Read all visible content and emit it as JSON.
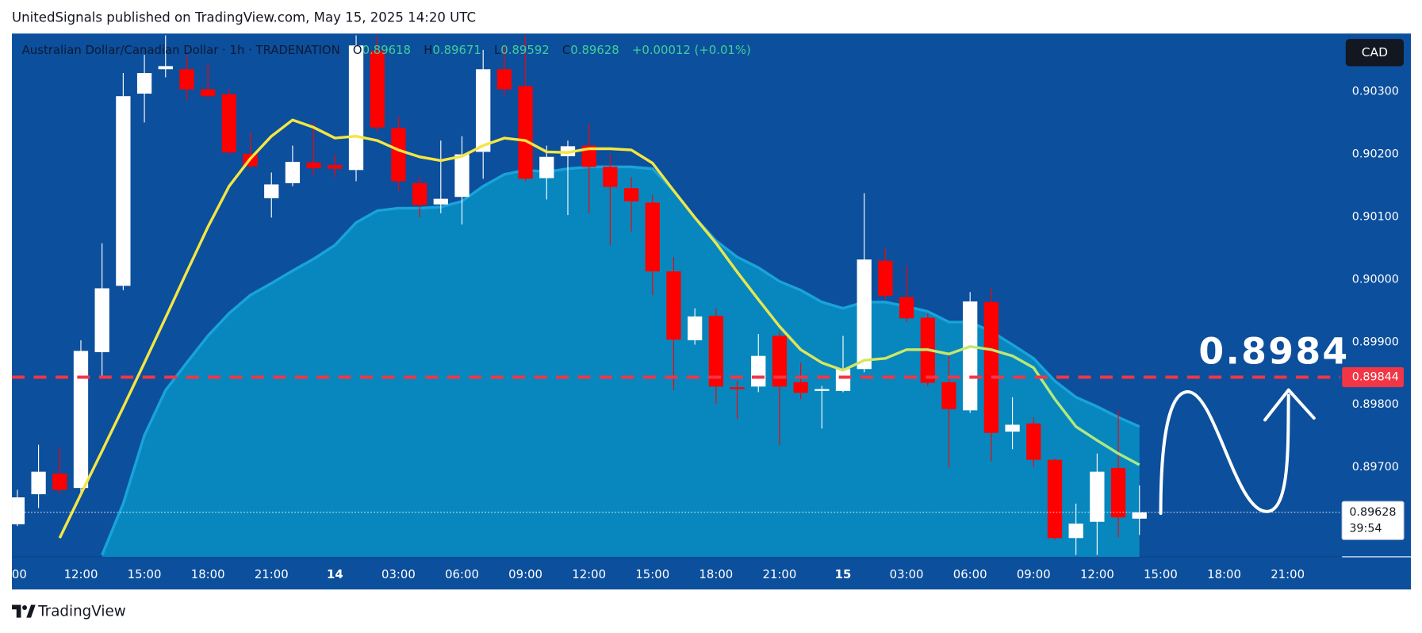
{
  "header": "UnitedSignals published on TradingView.com, May 15, 2025 14:20 UTC",
  "footer": "TradingView",
  "chart_data": {
    "type": "candlestick",
    "title": "Australian Dollar/Canadian Dollar · 1h · TRADENATION",
    "legend": [
      {
        "key": "O",
        "text": "0.89618"
      },
      {
        "key": "H",
        "text": "0.89671"
      },
      {
        "key": "L",
        "text": "0.89592"
      },
      {
        "key": "C",
        "text": "0.89628"
      },
      {
        "text": "+0.00012 (+0.01%)"
      }
    ],
    "currency": "CAD",
    "annotation": "0.8984",
    "categories": [
      ":00",
      null,
      null,
      "12:00",
      null,
      null,
      "15:00",
      null,
      null,
      "18:00",
      null,
      null,
      "21:00",
      null,
      null,
      "14",
      null,
      null,
      "03:00",
      null,
      null,
      "06:00",
      null,
      null,
      "09:00",
      null,
      null,
      "12:00",
      null,
      null,
      "15:00",
      null,
      null,
      "18:00",
      null,
      null,
      "21:00",
      null,
      null,
      "15",
      null,
      null,
      "03:00",
      null,
      null,
      "06:00",
      null,
      null,
      "09:00",
      null,
      null,
      "12:00",
      null,
      null,
      "15:00",
      null,
      null,
      "18:00",
      null,
      null,
      "21:00"
    ],
    "open": [
      0.89609,
      0.89657,
      0.8969,
      0.89667,
      0.89884,
      0.8999,
      0.90297,
      0.90336,
      0.90336,
      0.90304,
      0.90296,
      0.90201,
      0.9013,
      0.90154,
      0.90187,
      0.90183,
      0.90175,
      0.90365,
      0.90242,
      0.90154,
      0.9012,
      0.90132,
      0.90204,
      0.90336,
      0.90309,
      0.90162,
      0.90197,
      0.90214,
      0.9018,
      0.90146,
      0.90123,
      0.90013,
      0.89903,
      0.89942,
      0.89828,
      0.89829,
      0.8991,
      0.89836,
      0.89822,
      0.89822,
      0.89857,
      0.9003,
      0.89972,
      0.89939,
      0.89836,
      0.89791,
      0.89964,
      0.89757,
      0.8977,
      0.89712,
      0.89587,
      0.89613,
      0.89699,
      0.89618,
      null,
      null,
      null,
      null,
      null,
      null,
      null
    ],
    "high": [
      0.89664,
      0.89736,
      0.89732,
      0.89903,
      0.90058,
      0.9033,
      0.90359,
      0.9039,
      0.90359,
      0.90345,
      0.90304,
      0.90236,
      0.90171,
      0.90214,
      0.90251,
      0.902,
      0.9039,
      0.9039,
      0.90261,
      0.90164,
      0.90222,
      0.90229,
      0.90367,
      0.90374,
      0.9039,
      0.90214,
      0.90222,
      0.90249,
      0.902,
      0.90164,
      0.90135,
      0.90036,
      0.89954,
      0.89954,
      0.89838,
      0.89913,
      0.89917,
      0.89867,
      0.8983,
      0.8991,
      0.90138,
      0.90051,
      0.90022,
      0.89946,
      0.89881,
      0.8998,
      0.89986,
      0.89812,
      0.8978,
      0.89714,
      0.89642,
      0.89722,
      0.89791,
      0.89671,
      null,
      null,
      null,
      null,
      null,
      null,
      null
    ],
    "low": [
      0.89606,
      0.89635,
      0.89657,
      0.89657,
      0.89845,
      0.89983,
      0.90251,
      0.90323,
      0.90287,
      0.9029,
      0.902,
      0.90178,
      0.90099,
      0.90149,
      0.90167,
      0.90164,
      0.90157,
      0.90236,
      0.90142,
      0.90099,
      0.90106,
      0.90088,
      0.90161,
      0.90294,
      0.90157,
      0.90128,
      0.90103,
      0.90106,
      0.90055,
      0.90077,
      0.89975,
      0.89823,
      0.89896,
      0.89801,
      0.89777,
      0.8982,
      0.89736,
      0.89809,
      0.89762,
      0.8982,
      0.89852,
      0.89968,
      0.89932,
      0.8983,
      0.897,
      0.89787,
      0.8971,
      0.89729,
      0.897,
      0.89584,
      0.8956,
      0.8956,
      0.89588,
      0.89592,
      null,
      null,
      null,
      null,
      null,
      null,
      null
    ],
    "close": [
      0.89652,
      0.89693,
      0.89664,
      0.89886,
      0.89986,
      0.90293,
      0.9033,
      0.90341,
      0.90304,
      0.90293,
      0.90203,
      0.90181,
      0.90152,
      0.90188,
      0.90178,
      0.90177,
      0.90374,
      0.90243,
      0.90157,
      0.90119,
      0.90129,
      0.902,
      0.90336,
      0.90304,
      0.90161,
      0.90196,
      0.90213,
      0.9018,
      0.90148,
      0.90125,
      0.90013,
      0.89904,
      0.89941,
      0.89829,
      0.89825,
      0.89878,
      0.89829,
      0.89819,
      0.89825,
      0.89857,
      0.90032,
      0.89974,
      0.89938,
      0.89835,
      0.89793,
      0.89965,
      0.89755,
      0.89768,
      0.89712,
      0.89587,
      0.8961,
      0.89693,
      0.8962,
      0.89628,
      null,
      null,
      null,
      null,
      null,
      null,
      null
    ],
    "up_color": "#ffffff",
    "down_color": "#ff0000",
    "ma_line": {
      "colors": [
        "#f5e642",
        "#a6e88a"
      ],
      "values": [
        null,
        null,
        0.89587,
        0.89657,
        0.89726,
        0.89796,
        0.89867,
        0.89939,
        0.90012,
        0.90084,
        0.90149,
        0.90193,
        0.90229,
        0.90255,
        0.90243,
        0.90226,
        0.90229,
        0.90222,
        0.90207,
        0.90196,
        0.9019,
        0.90197,
        0.90214,
        0.90226,
        0.90222,
        0.90204,
        0.90203,
        0.90209,
        0.90209,
        0.90207,
        0.90186,
        0.90142,
        0.90099,
        0.90058,
        0.90012,
        0.89968,
        0.89925,
        0.89888,
        0.89867,
        0.89855,
        0.89871,
        0.89874,
        0.89888,
        0.89888,
        0.89881,
        0.89893,
        0.89888,
        0.89878,
        0.89859,
        0.89809,
        0.89765,
        0.89743,
        0.89722,
        0.89704,
        null,
        null,
        null,
        null,
        null,
        null,
        null
      ]
    },
    "band_area": {
      "color": "#0787bd",
      "edge_color": "#19a3da",
      "values": [
        null,
        null,
        null,
        null,
        0.8956,
        0.89642,
        0.89751,
        0.89823,
        0.89867,
        0.8991,
        0.89946,
        0.89975,
        0.89994,
        0.90014,
        0.90033,
        0.90055,
        0.90091,
        0.9011,
        0.90114,
        0.90114,
        0.90116,
        0.90125,
        0.90149,
        0.90168,
        0.90175,
        0.90172,
        0.90177,
        0.9018,
        0.9018,
        0.9018,
        0.90177,
        0.90142,
        0.90099,
        0.90062,
        0.90036,
        0.90019,
        0.89997,
        0.89983,
        0.89964,
        0.89954,
        0.89964,
        0.89964,
        0.89957,
        0.89949,
        0.89932,
        0.89932,
        0.89917,
        0.89896,
        0.89874,
        0.89838,
        0.89812,
        0.89797,
        0.8978,
        0.89765,
        null,
        null,
        null,
        null,
        null,
        null,
        null
      ]
    },
    "price_line": {
      "value": 0.89844,
      "color": "#f23645"
    },
    "current_price": {
      "value": 0.89628,
      "countdown": "39:54"
    },
    "ylim": [
      0.89557,
      0.90393
    ],
    "yticks": [
      {
        "value": 0.903,
        "label": "0.90300"
      },
      {
        "value": 0.902,
        "label": "0.90200"
      },
      {
        "value": 0.901,
        "label": "0.90100"
      },
      {
        "value": 0.9,
        "label": "0.90000"
      },
      {
        "value": 0.899,
        "label": "0.89900"
      },
      {
        "value": 0.898,
        "label": "0.89800"
      },
      {
        "value": 0.897,
        "label": "0.89700"
      }
    ]
  }
}
